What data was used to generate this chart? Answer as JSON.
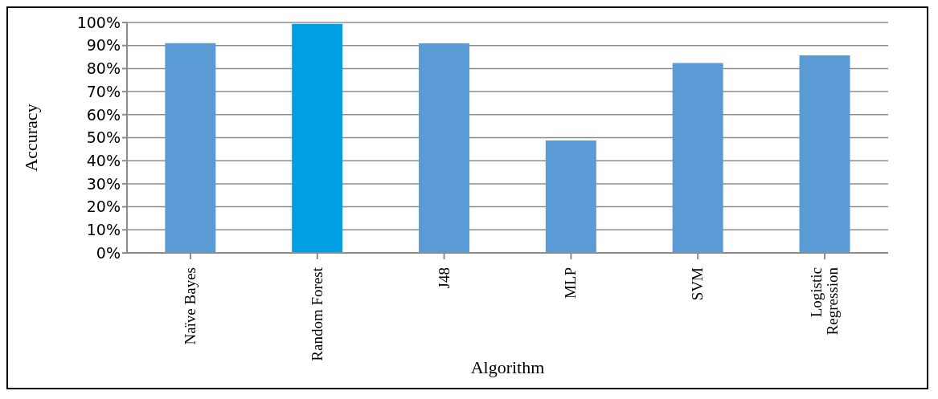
{
  "chart_data": {
    "type": "bar",
    "xlabel": "Algorithm",
    "ylabel": "Accuracy",
    "categories": [
      "Naïve Bayes",
      "Random Forest",
      "J48",
      "MLP",
      "SVM",
      "Logistic Regression"
    ],
    "values": [
      91,
      99.4,
      90.9,
      48.8,
      82.4,
      85.7
    ],
    "colors": [
      "#5b9bd5",
      "#009fe3",
      "#5b9bd5",
      "#5b9bd5",
      "#5b9bd5",
      "#5b9bd5"
    ],
    "ylim": [
      0,
      100
    ],
    "yticks": [
      {
        "value": 0,
        "label": "0%"
      },
      {
        "value": 10,
        "label": "10%"
      },
      {
        "value": 20,
        "label": "20%"
      },
      {
        "value": 30,
        "label": "30%"
      },
      {
        "value": 40,
        "label": "40%"
      },
      {
        "value": 50,
        "label": "50%"
      },
      {
        "value": 60,
        "label": "60%"
      },
      {
        "value": 70,
        "label": "70%"
      },
      {
        "value": 80,
        "label": "80%"
      },
      {
        "value": 90,
        "label": "90%"
      },
      {
        "value": 100,
        "label": "100%"
      }
    ],
    "grid": "y",
    "legend": false
  }
}
